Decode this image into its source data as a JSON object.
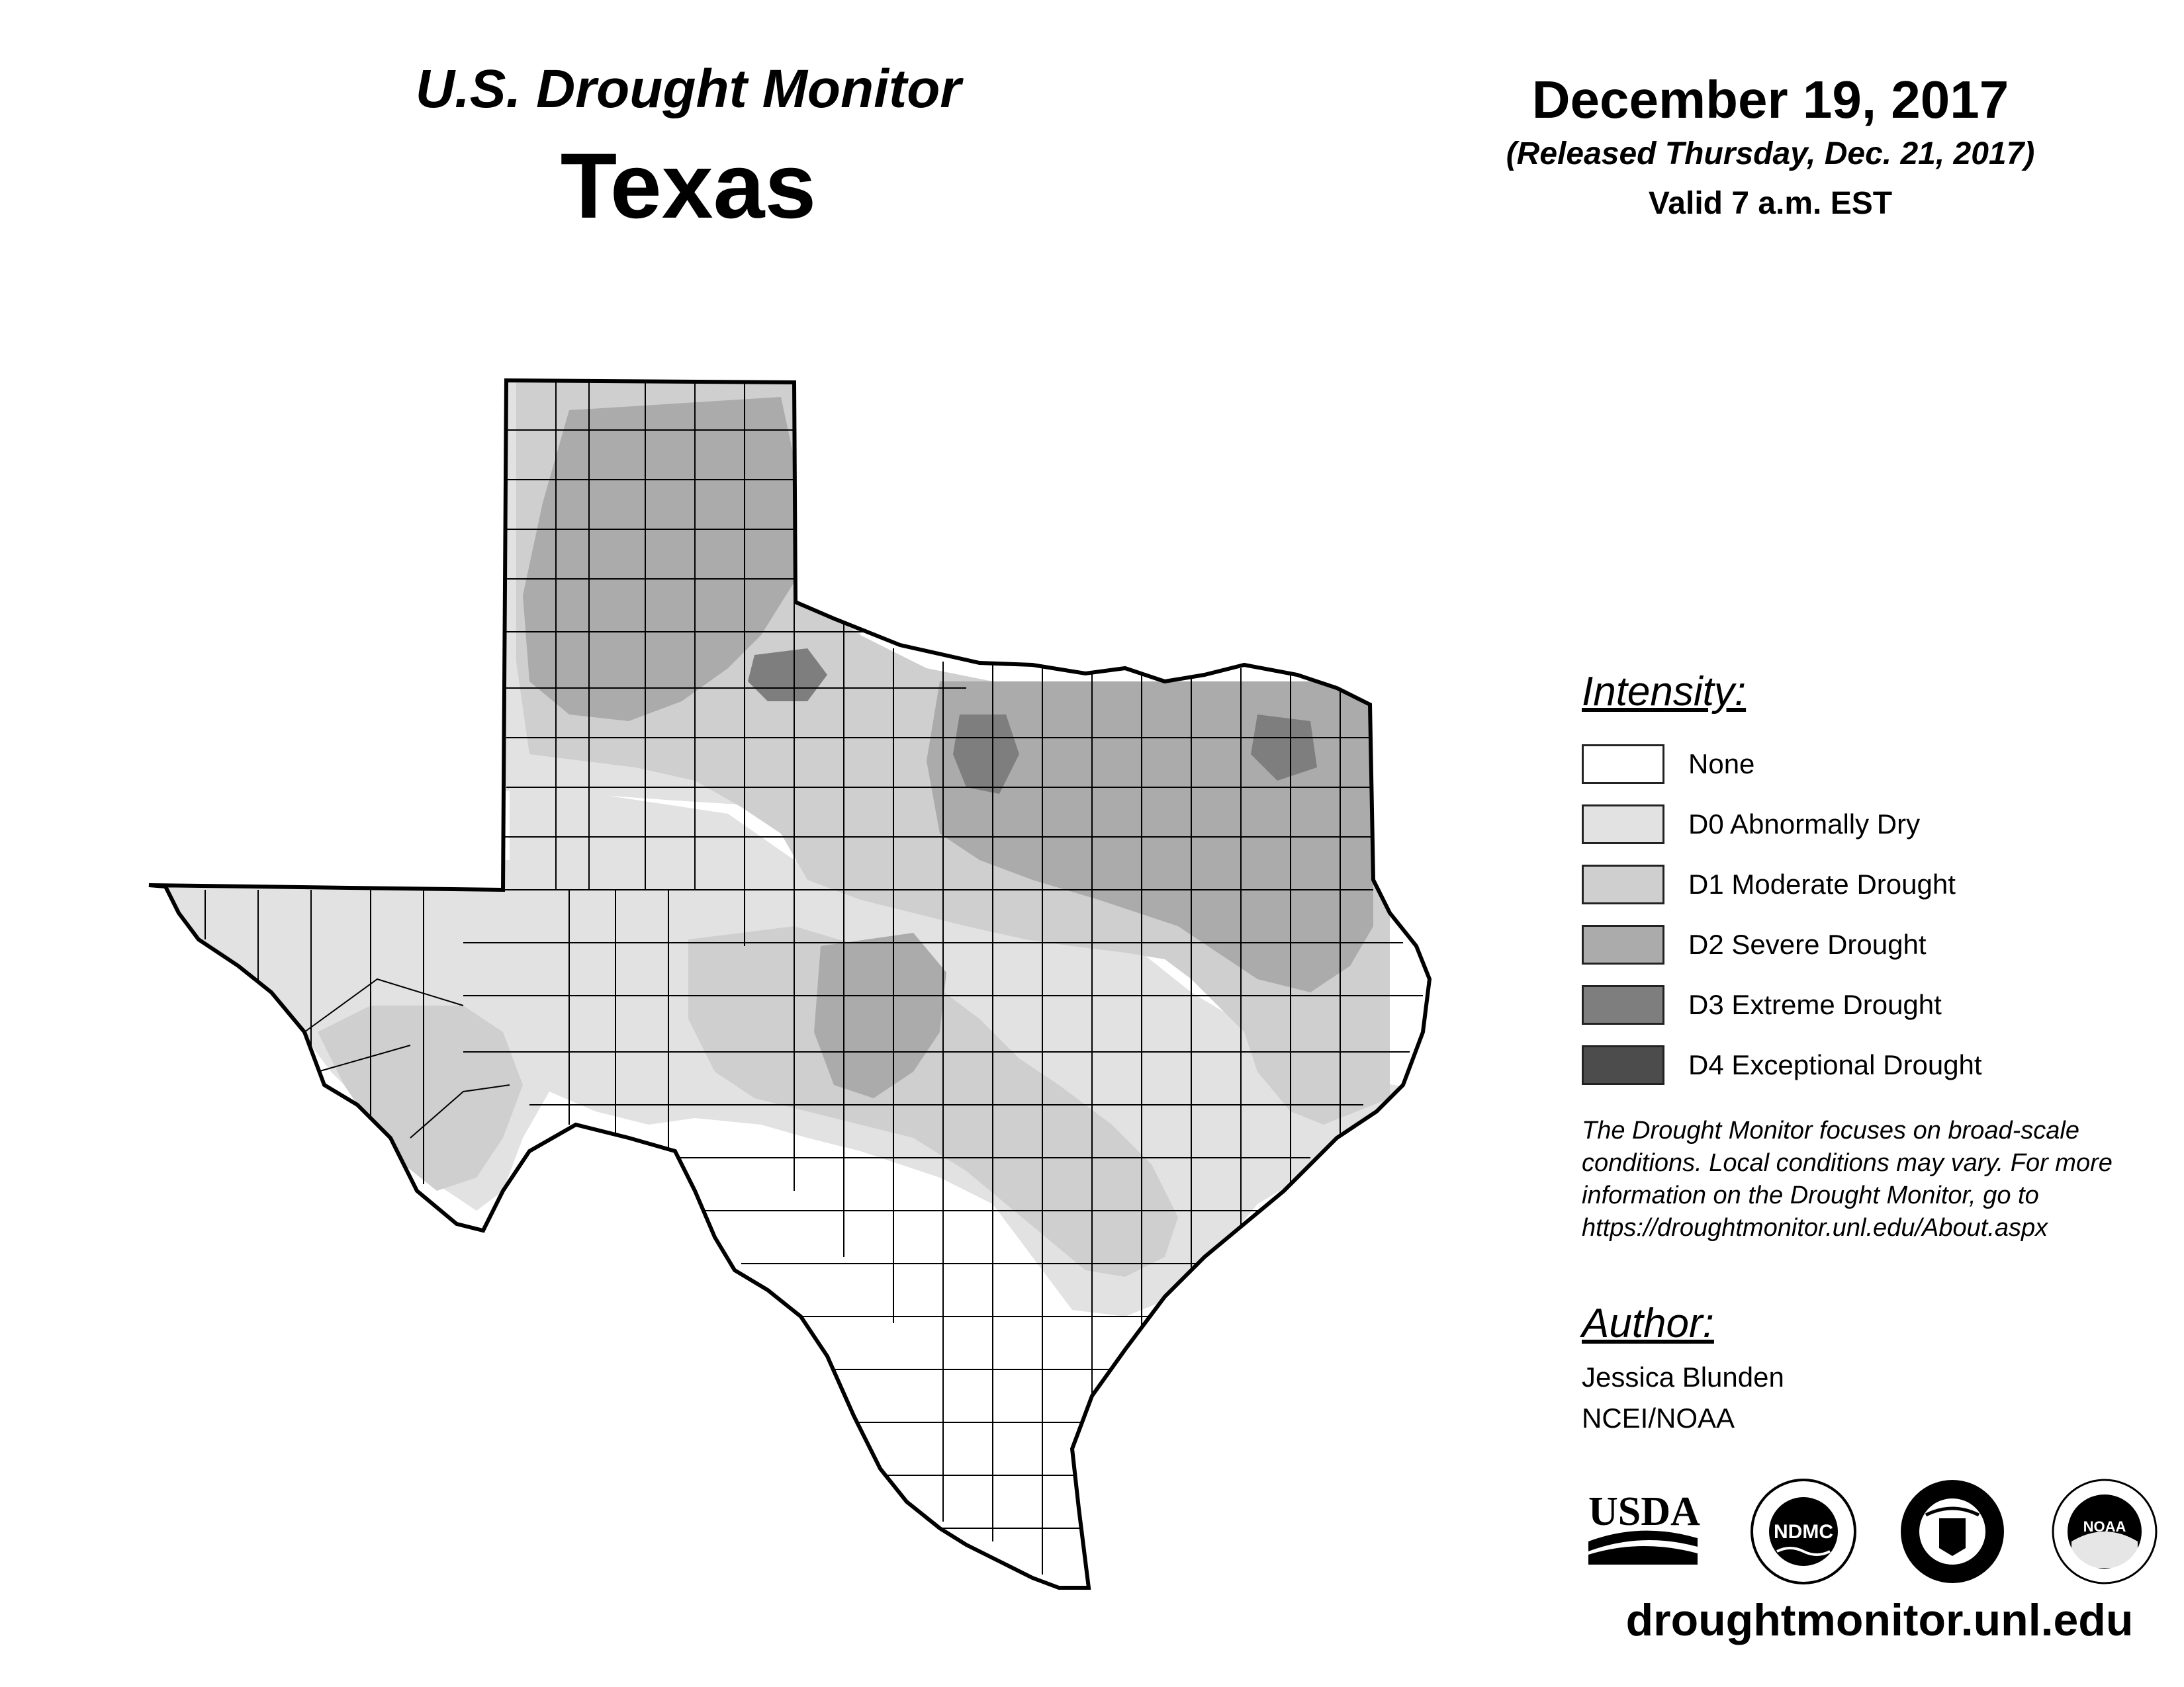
{
  "header": {
    "title": "U.S. Drought Monitor",
    "state": "Texas",
    "date": "December 19, 2017",
    "released": "(Released Thursday, Dec. 21, 2017)",
    "valid": "Valid 7 a.m. EST"
  },
  "legend": {
    "title": "Intensity:",
    "items": [
      {
        "label": "None",
        "color": "#ffffff"
      },
      {
        "label": "D0 Abnormally Dry",
        "color": "#e2e2e2"
      },
      {
        "label": "D1 Moderate Drought",
        "color": "#cfcfcf"
      },
      {
        "label": "D2 Severe Drought",
        "color": "#ababab"
      },
      {
        "label": "D3 Extreme Drought",
        "color": "#7e7e7e"
      },
      {
        "label": "D4 Exceptional Drought",
        "color": "#4c4c4c"
      }
    ]
  },
  "note": "The Drought Monitor focuses on broad-scale conditions. Local conditions may vary. For more information on the Drought Monitor, go to https://droughtmonitor.unl.edu/About.aspx",
  "author": {
    "title": "Author:",
    "name": "Jessica Blunden",
    "org": "NCEI/NOAA"
  },
  "logos": [
    {
      "name": "usda-logo",
      "text": "USDA"
    },
    {
      "name": "ndmc-logo",
      "text": "NDMC"
    },
    {
      "name": "commerce-seal",
      "text": ""
    },
    {
      "name": "noaa-logo",
      "text": "NOAA"
    }
  ],
  "website": "droughtmonitor.unl.edu"
}
